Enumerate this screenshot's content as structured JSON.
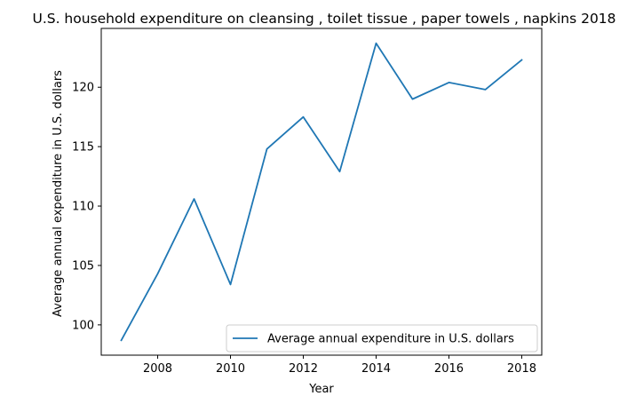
{
  "chart_data": {
    "type": "line",
    "title": "U.S. household expenditure on cleansing , toilet tissue , paper towels , napkins 2018",
    "xlabel": "Year",
    "ylabel": "Average annual expenditure in U.S. dollars",
    "x": [
      2007,
      2008,
      2009,
      2010,
      2011,
      2012,
      2013,
      2014,
      2015,
      2016,
      2017,
      2018
    ],
    "x_ticks": [
      2008,
      2010,
      2012,
      2014,
      2016,
      2018
    ],
    "y_ticks": [
      100,
      105,
      110,
      115,
      120
    ],
    "xlim": [
      2006.45,
      2018.55
    ],
    "ylim": [
      97.45,
      124.95
    ],
    "grid": false,
    "legend_position": "lower-right",
    "series": [
      {
        "name": "Average annual expenditure in U.S. dollars",
        "color": "#1f77b4",
        "values": [
          98.7,
          104.3,
          110.6,
          103.4,
          114.8,
          117.5,
          112.9,
          123.7,
          119.0,
          120.4,
          119.8,
          122.3
        ]
      }
    ]
  }
}
